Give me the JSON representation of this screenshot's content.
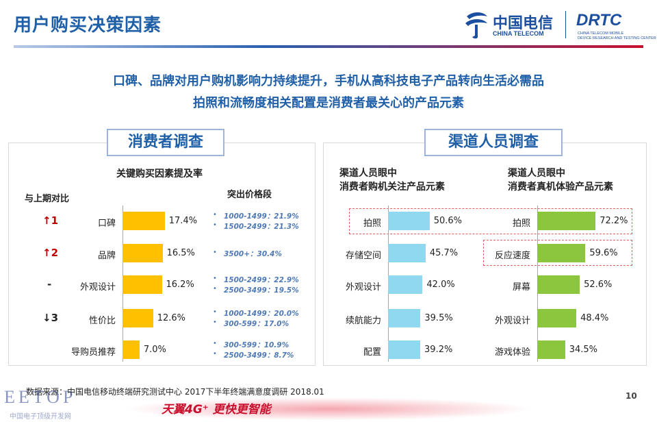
{
  "header": {
    "title": "用户购买决策因素",
    "logo_ct_cn": "中国电信",
    "logo_ct_en": "CHINA TELECOM",
    "logo_drtc": "DRTC",
    "logo_drtc_sub1": "CHINA TELECOM MOBILE",
    "logo_drtc_sub2": "DEVICE RESEARCH AND TESTING CENTER"
  },
  "headline": {
    "line1": "口碑、品牌对用户购机影响力持续提升，手机从高科技电子产品转向生活必需品",
    "line2": "拍照和流畅度相关配置是消费者最关心的产品元素"
  },
  "left_panel": {
    "tab": "消费者调查",
    "subtitle": "关键购买因素提及率",
    "compare_header": "与上期对比",
    "price_header": "突出价格段"
  },
  "right_panel": {
    "tab": "渠道人员调查",
    "left_title_1": "渠道人员眼中",
    "left_title_2": "消费者购机关注产品元素",
    "right_title_1": "渠道人员眼中",
    "right_title_2": "消费者真机体验产品元素"
  },
  "chart_data": [
    {
      "type": "bar",
      "orientation": "horizontal",
      "title": "关键购买因素提及率",
      "categories": [
        "口碑",
        "品牌",
        "外观设计",
        "性价比",
        "导购员推荐"
      ],
      "values": [
        17.4,
        16.5,
        16.2,
        12.6,
        7.0
      ],
      "value_labels": [
        "17.4%",
        "16.5%",
        "16.2%",
        "12.6%",
        "7.0%"
      ],
      "compare": [
        "↑1",
        "↑2",
        "-",
        "↓3",
        ""
      ],
      "price_segments": [
        [
          "1000-1499：21.9%",
          "1500-2499：21.3%"
        ],
        [
          "3500+：30.4%"
        ],
        [
          "1500-2499：22.9%",
          "2500-3499：19.5%"
        ],
        [
          "1000-1499：20.0%",
          "300-599：17.0%"
        ],
        [
          "300-599：10.9%",
          "2500-3499：8.7%"
        ]
      ],
      "color": "#ffc000"
    },
    {
      "type": "bar",
      "orientation": "horizontal",
      "title": "渠道人员眼中 消费者购机关注产品元素",
      "categories": [
        "拍照",
        "存储空间",
        "外观设计",
        "续航能力",
        "配置"
      ],
      "values": [
        50.6,
        45.7,
        42.0,
        39.5,
        39.2
      ],
      "value_labels": [
        "50.6%",
        "45.7%",
        "42.0%",
        "39.5%",
        "39.2%"
      ],
      "color": "#8fd8f0"
    },
    {
      "type": "bar",
      "orientation": "horizontal",
      "title": "渠道人员眼中 消费者真机体验产品元素",
      "categories": [
        "拍照",
        "反应速度",
        "屏幕",
        "外观设计",
        "游戏体验"
      ],
      "values": [
        72.2,
        59.6,
        52.6,
        48.4,
        34.5
      ],
      "value_labels": [
        "72.2%",
        "59.6%",
        "52.6%",
        "48.4%",
        "34.5%"
      ],
      "color": "#8cc63f"
    }
  ],
  "footer": {
    "source": "数据来源：中国电信移动终端研究测试中心 2017下半年终端满意度调研 2018.01",
    "page_number": "10",
    "slogan": "天翼4G⁺ 更快更智能",
    "watermark": "EETOP",
    "watermark_sub": "中国电子顶级开发网"
  }
}
